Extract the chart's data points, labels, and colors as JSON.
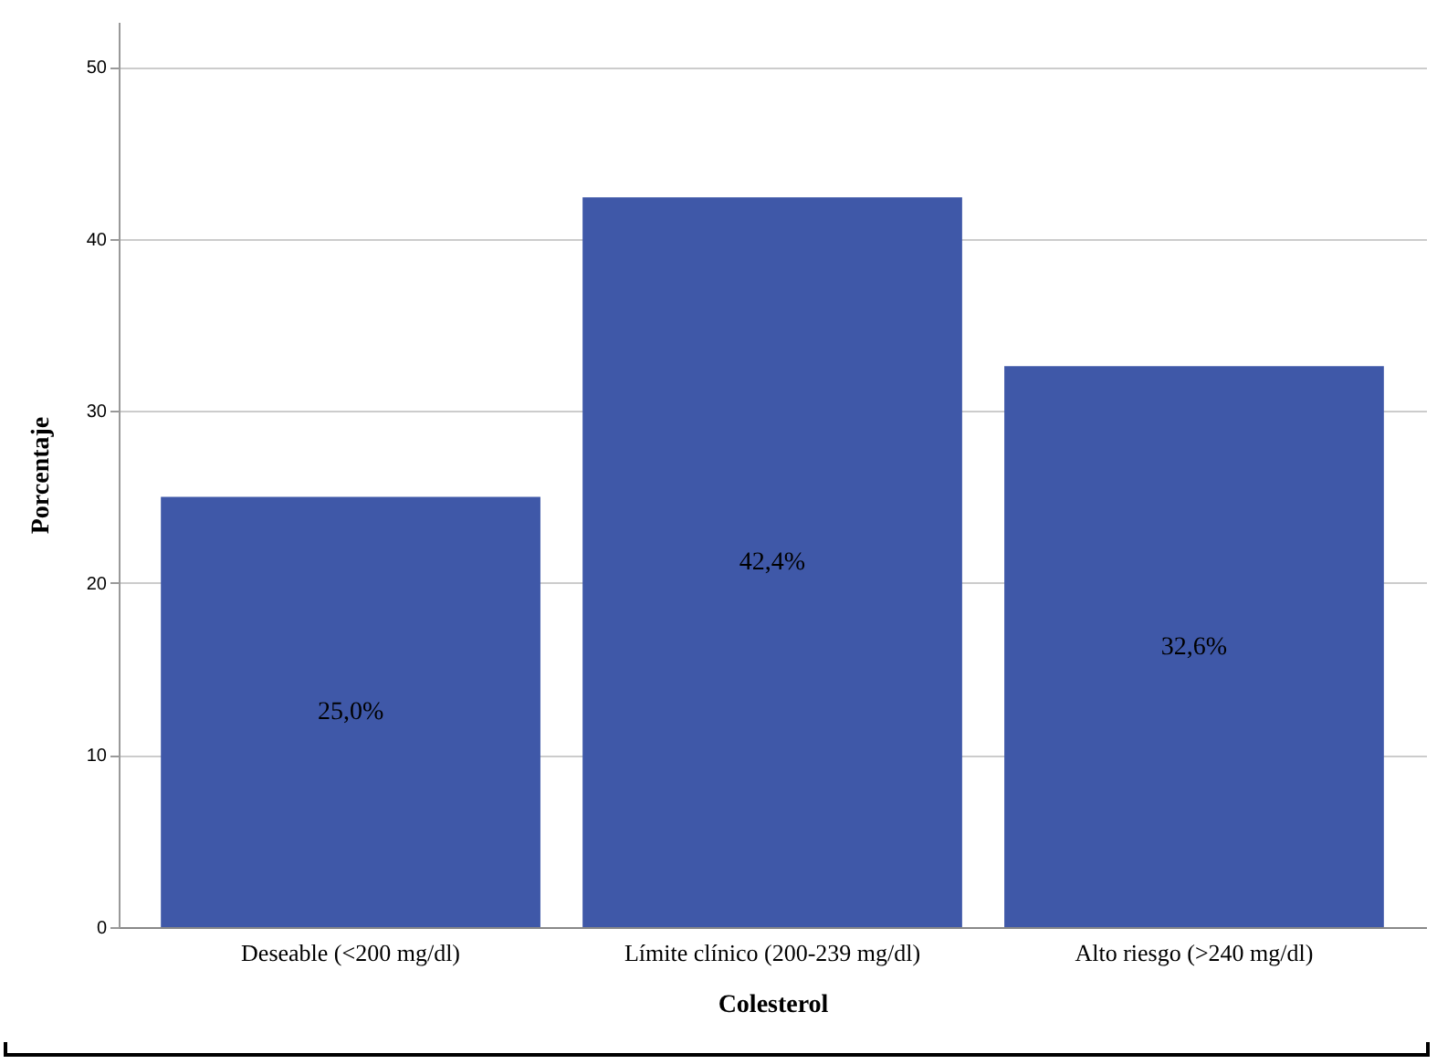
{
  "chart_data": {
    "type": "bar",
    "xlabel": "Colesterol",
    "ylabel": "Porcentaje",
    "categories": [
      "Deseable  (<200 mg/dl)",
      "Límite clínico (200-239 mg/dl)",
      "Alto  riesgo (>240 mg/dl)"
    ],
    "values": [
      25.0,
      42.4,
      32.6
    ],
    "value_labels": [
      "25,0%",
      "42,4%",
      "32,6%"
    ],
    "color": "#3f58a8",
    "ylim": [
      0,
      52.6
    ],
    "yticks": [
      0,
      10,
      20,
      30,
      40,
      50
    ],
    "grid": "y"
  }
}
